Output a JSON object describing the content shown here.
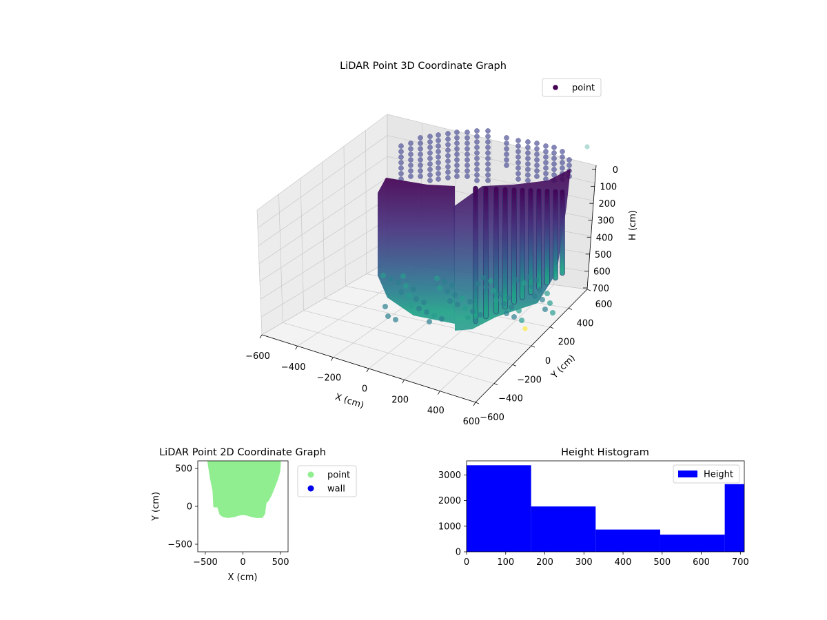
{
  "chart_data": [
    {
      "type": "scatter",
      "title": "LiDAR Point 3D Coordinate Graph",
      "xlabel": "X (cm)",
      "ylabel": "Y (cm)",
      "zlabel": "H (cm)",
      "xlim": [
        -600,
        600
      ],
      "ylim": [
        -600,
        600
      ],
      "zlim": [
        0,
        700
      ],
      "z_axis_inverted": true,
      "xticks": [
        "−600",
        "−400",
        "−200",
        "0",
        "200",
        "400",
        "600"
      ],
      "yticks": [
        "−600",
        "−400",
        "−200",
        "0",
        "200",
        "400",
        "600"
      ],
      "zticks": [
        "0",
        "100",
        "200",
        "300",
        "400",
        "500",
        "600",
        "700"
      ],
      "colormap": "viridis",
      "legend": {
        "position": "upper-right",
        "entries": [
          "point"
        ]
      },
      "grid": true,
      "series": [
        {
          "name": "point"
        }
      ]
    },
    {
      "type": "scatter",
      "title": "LiDAR Point 2D Coordinate Graph",
      "xlabel": "X (cm)",
      "ylabel": "Y (cm)",
      "xlim": [
        -600,
        600
      ],
      "ylim": [
        -600,
        600
      ],
      "xticks": [
        "−500",
        "0",
        "500"
      ],
      "yticks": [
        "−500",
        "0",
        "500"
      ],
      "legend": {
        "position": "outside-right",
        "entries": [
          "point",
          "wall"
        ]
      },
      "series": [
        {
          "name": "point",
          "color": "#90ee90",
          "outline_x": [
            -460,
            -430,
            -410,
            -390,
            -380,
            -330,
            -300,
            -260,
            -200,
            -120,
            -60,
            0,
            60,
            120,
            180,
            250,
            280,
            300,
            330,
            370,
            410,
            450,
            480,
            490,
            490
          ],
          "outline_y": [
            600,
            400,
            300,
            200,
            0,
            0,
            -100,
            -130,
            -140,
            -130,
            -110,
            -100,
            -110,
            -130,
            -140,
            -140,
            -100,
            50,
            80,
            150,
            250,
            350,
            450,
            550,
            600
          ]
        },
        {
          "name": "wall",
          "color": "#0000ee",
          "points": []
        }
      ]
    },
    {
      "type": "bar",
      "title": "Height Histogram",
      "xlabel": "",
      "ylabel": "",
      "xlim": [
        0,
        710
      ],
      "ylim": [
        0,
        3550
      ],
      "xticks": [
        "0",
        "100",
        "200",
        "300",
        "400",
        "500",
        "600",
        "700"
      ],
      "yticks": [
        "0",
        "1000",
        "2000",
        "3000"
      ],
      "legend": {
        "position": "upper-right",
        "entries": [
          "Height"
        ]
      },
      "series": [
        {
          "name": "Height",
          "color": "#0000ff",
          "bin_edges": [
            0,
            165,
            330,
            495,
            660,
            710
          ],
          "values": [
            3380,
            1770,
            870,
            670,
            2640
          ]
        }
      ]
    }
  ]
}
